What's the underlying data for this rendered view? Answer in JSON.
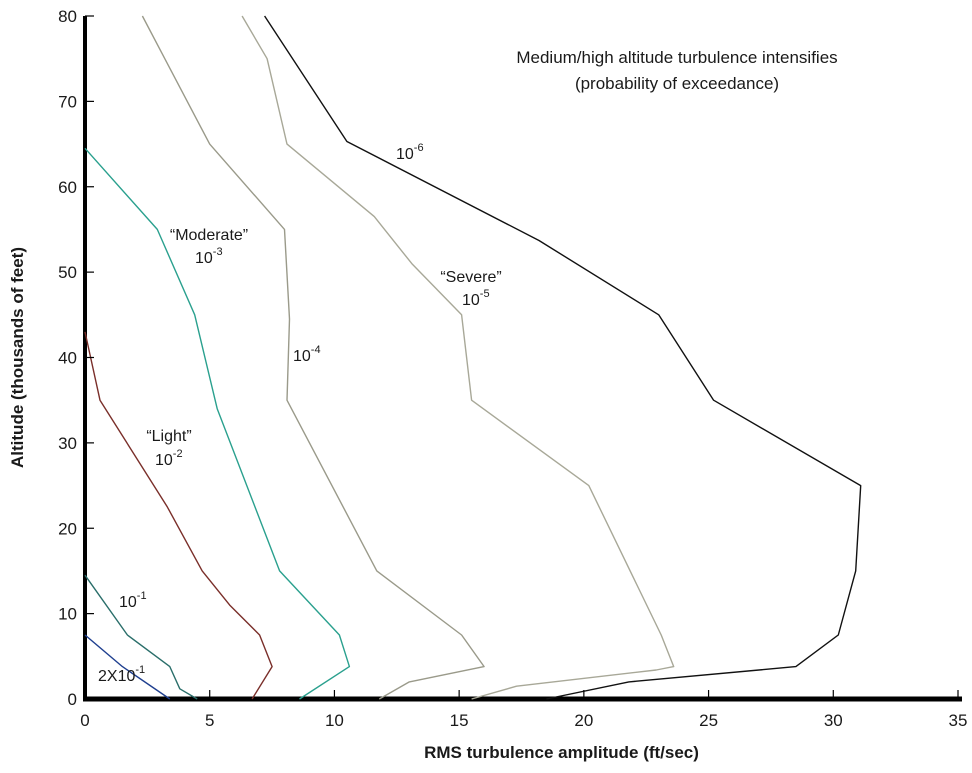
{
  "chart_data": {
    "type": "line",
    "title": "",
    "annotation_lines": [
      "Medium/high altitude turbulence intensifies",
      "(probability of exceedance)"
    ],
    "xlabel": "RMS turbulence amplitude (ft/sec)",
    "ylabel": "Altitude (thousands of feet)",
    "xlim": [
      0,
      35
    ],
    "ylim": [
      0,
      80
    ],
    "xticks": [
      0,
      5,
      10,
      15,
      20,
      25,
      30,
      35
    ],
    "yticks": [
      0,
      10,
      20,
      30,
      40,
      50,
      60,
      70,
      80
    ],
    "grid": false,
    "legend": "none",
    "series": [
      {
        "id": "2x10-1",
        "color": "#1f3f8f",
        "label": {
          "name": "",
          "base": "2X10",
          "exp": "-1"
        },
        "points": [
          [
            0,
            7.5
          ],
          [
            1.5,
            3.8
          ],
          [
            3.4,
            0
          ]
        ]
      },
      {
        "id": "10-1",
        "color": "#2a6e6a",
        "label": {
          "name": "",
          "base": "10",
          "exp": "-1"
        },
        "points": [
          [
            0,
            14.5
          ],
          [
            1.7,
            7.5
          ],
          [
            3.4,
            3.8
          ],
          [
            3.8,
            1.2
          ],
          [
            4.5,
            0
          ]
        ]
      },
      {
        "id": "10-2",
        "color": "#7a2f2a",
        "label": {
          "name": "“Light”",
          "base": "10",
          "exp": "-2"
        },
        "points": [
          [
            0,
            43
          ],
          [
            0.6,
            35
          ],
          [
            3.3,
            22.5
          ],
          [
            4.7,
            15
          ],
          [
            5.8,
            11
          ],
          [
            7,
            7.5
          ],
          [
            7.5,
            3.8
          ],
          [
            6.7,
            0
          ]
        ]
      },
      {
        "id": "10-3",
        "color": "#2aa08e",
        "label": {
          "name": "“Moderate”",
          "base": "10",
          "exp": "-3"
        },
        "points": [
          [
            0,
            64.5
          ],
          [
            2.9,
            55
          ],
          [
            4.4,
            45
          ],
          [
            5.3,
            34
          ],
          [
            7.8,
            15
          ],
          [
            10.2,
            7.5
          ],
          [
            10.6,
            3.8
          ],
          [
            8.6,
            0
          ]
        ]
      },
      {
        "id": "10-4",
        "color": "#9a9a8a",
        "label": {
          "name": "",
          "base": "10",
          "exp": "-4"
        },
        "points": [
          [
            2.3,
            80
          ],
          [
            3.2,
            75
          ],
          [
            5,
            65
          ],
          [
            8,
            55
          ],
          [
            8.2,
            44.5
          ],
          [
            8.1,
            35
          ],
          [
            11.7,
            15
          ],
          [
            15.1,
            7.5
          ],
          [
            16,
            3.8
          ],
          [
            13,
            2
          ],
          [
            11.8,
            0
          ]
        ]
      },
      {
        "id": "10-5",
        "color": "#a8a898",
        "label": {
          "name": "“Severe”",
          "base": "10",
          "exp": "-5"
        },
        "points": [
          [
            6.3,
            80
          ],
          [
            7.3,
            75
          ],
          [
            8.1,
            65
          ],
          [
            11.6,
            56.5
          ],
          [
            13.1,
            51
          ],
          [
            15.1,
            45
          ],
          [
            15.5,
            35
          ],
          [
            20.2,
            25
          ],
          [
            23.1,
            7.5
          ],
          [
            23.6,
            3.8
          ],
          [
            22.9,
            3.4
          ],
          [
            17.3,
            1.5
          ],
          [
            15.5,
            0
          ]
        ]
      },
      {
        "id": "10-6",
        "color": "#111111",
        "label": {
          "name": "",
          "base": "10",
          "exp": "-6"
        },
        "points": [
          [
            7.2,
            80
          ],
          [
            10.5,
            65.3
          ],
          [
            18.2,
            53.7
          ],
          [
            23,
            45
          ],
          [
            25.2,
            35
          ],
          [
            31.1,
            25
          ],
          [
            30.9,
            15
          ],
          [
            30.2,
            7.5
          ],
          [
            28.5,
            3.8
          ],
          [
            21.8,
            2
          ],
          [
            18.5,
            0
          ]
        ]
      }
    ]
  }
}
